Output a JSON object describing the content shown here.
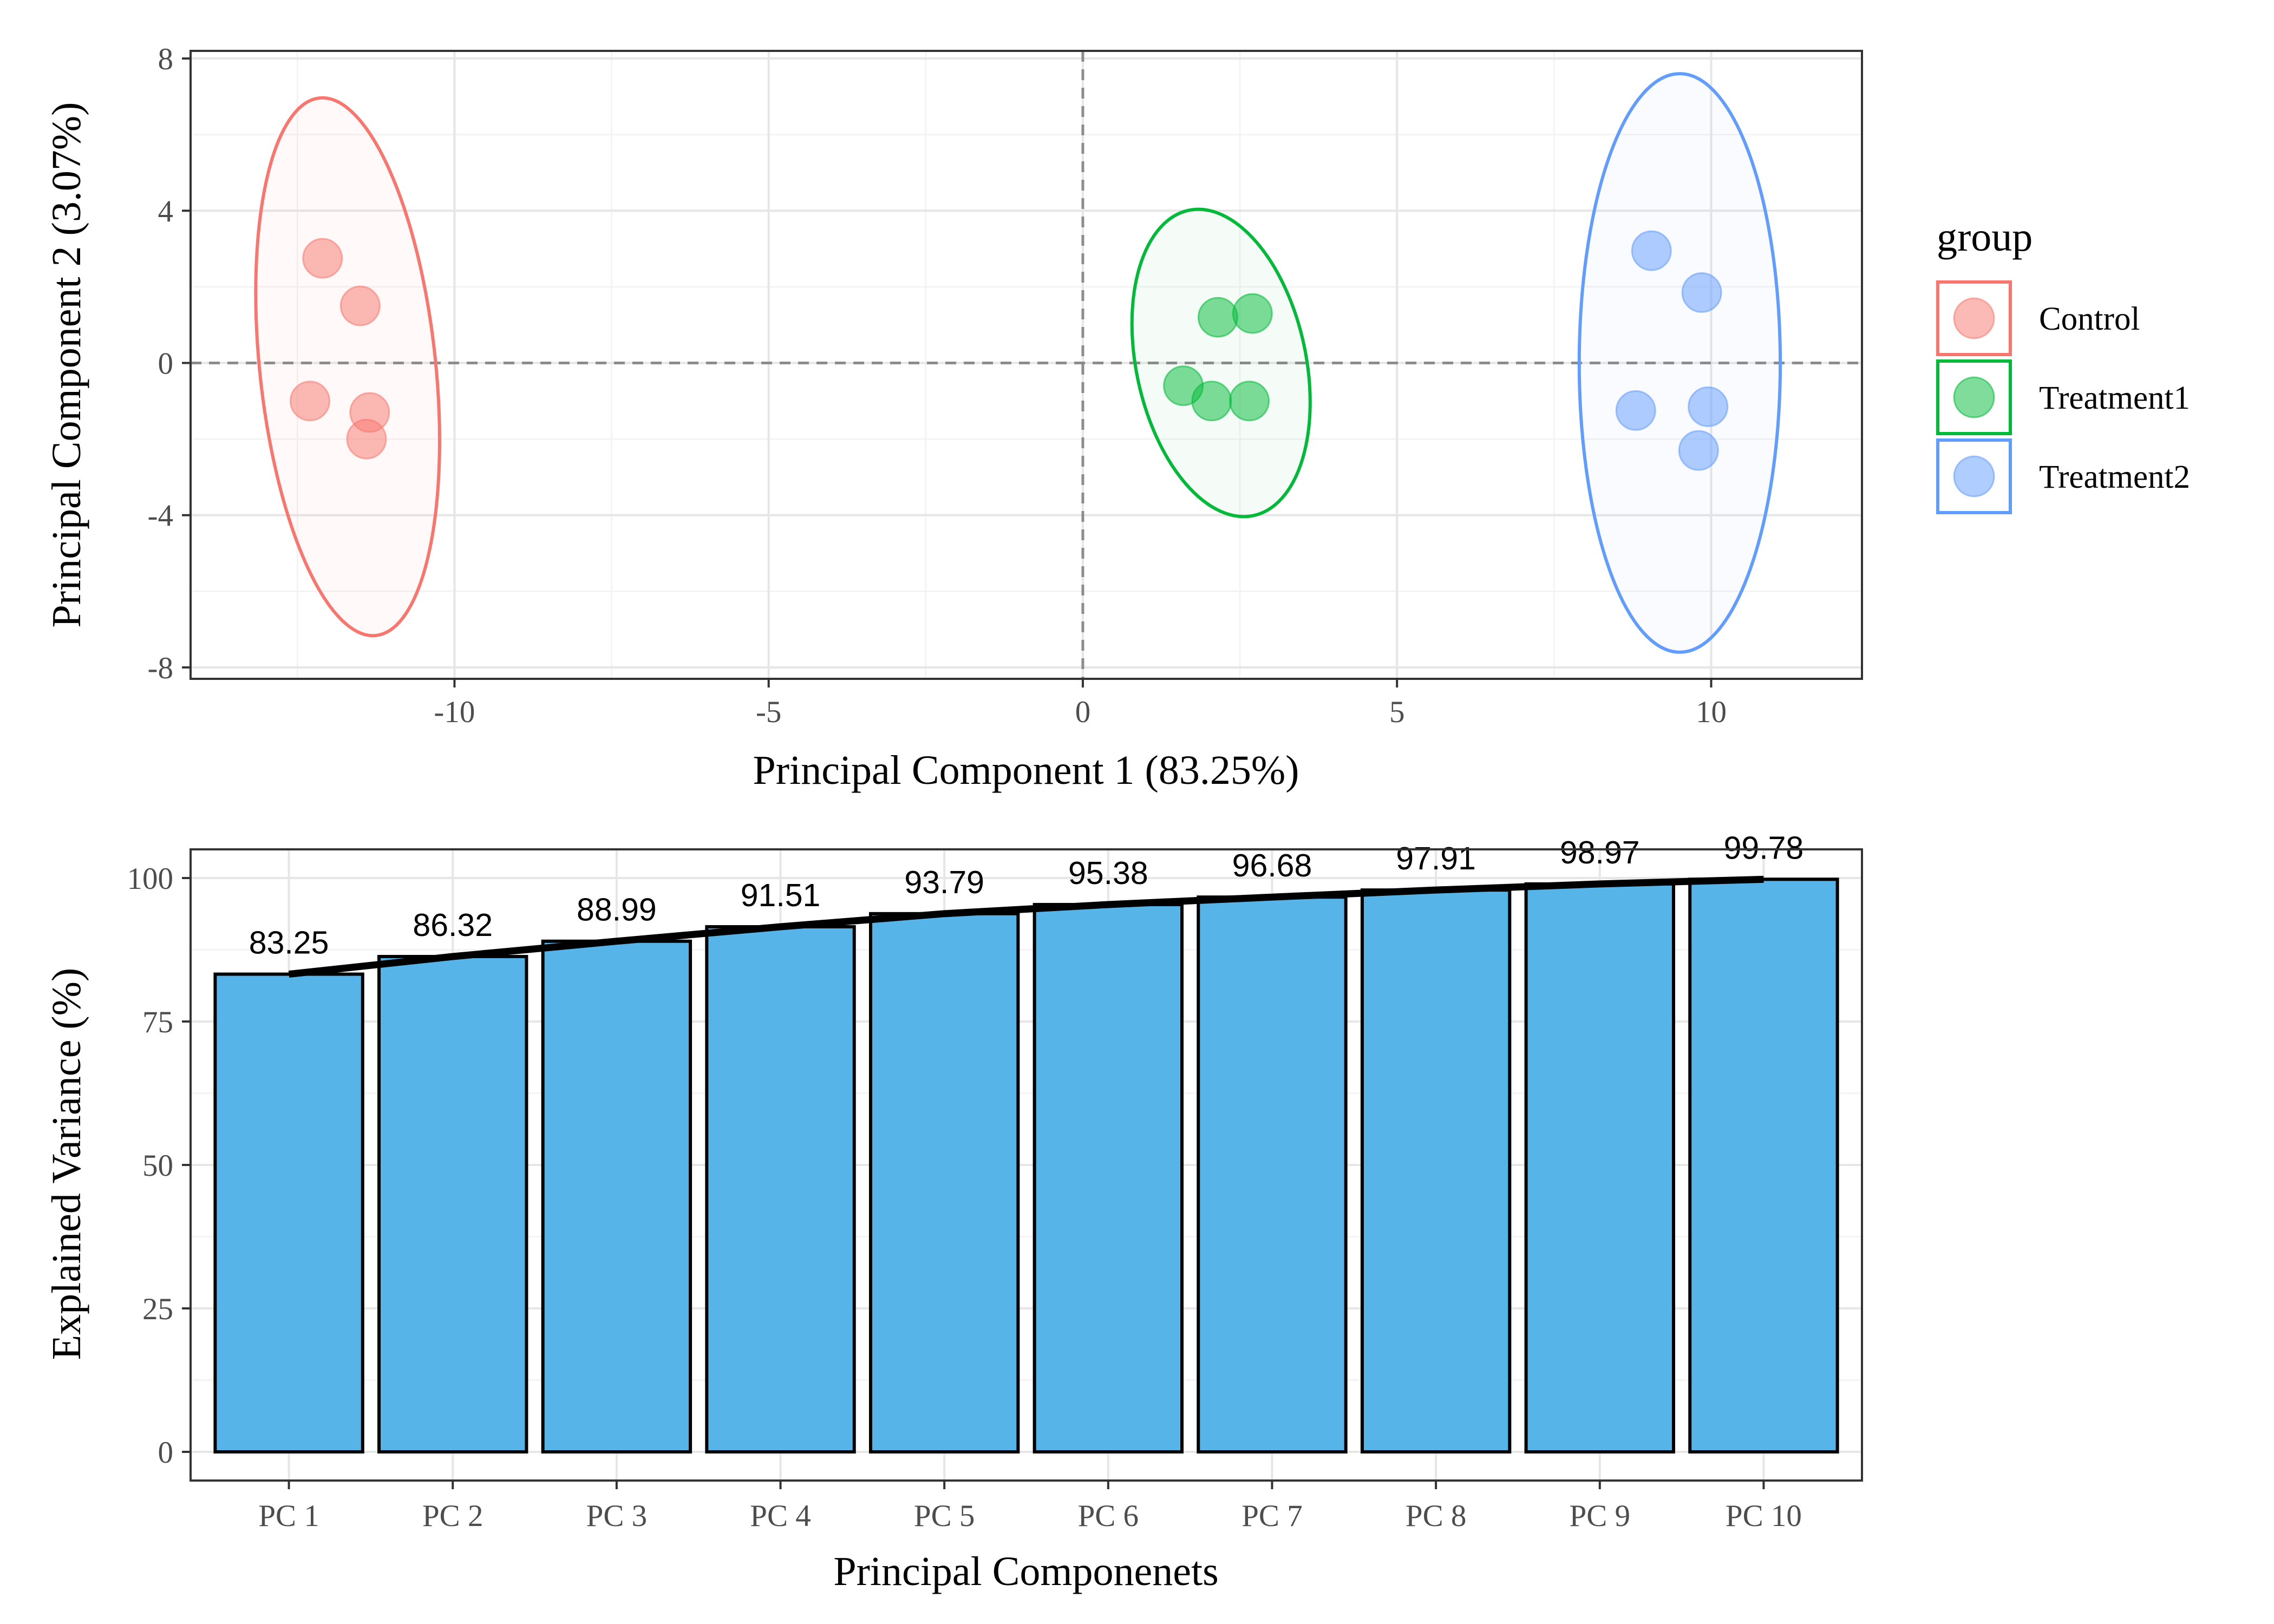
{
  "chart_data": [
    {
      "type": "scatter",
      "title": "",
      "xlabel": "Principal Component 1 (83.25%)",
      "ylabel": "Principal Component 2 (3.07%)",
      "xlim": [
        -14.2,
        12.4
      ],
      "ylim": [
        -8.3,
        8.2
      ],
      "xticks": [
        -10,
        -5,
        0,
        5,
        10
      ],
      "xtick_labels": [
        "-10",
        "-5",
        "0",
        "5",
        "10"
      ],
      "yticks": [
        -8,
        -4,
        0,
        4,
        8
      ],
      "ytick_labels": [
        "-8",
        "-4",
        "0",
        "4",
        "8"
      ],
      "grid": true,
      "reference_lines": {
        "x": 0,
        "y": 0,
        "style": "dashed"
      },
      "legend_title": "group",
      "legend_position": "right",
      "series": [
        {
          "name": "Control",
          "color": "#F8766D",
          "points": [
            [
              -12.1,
              2.75
            ],
            [
              -11.5,
              1.5
            ],
            [
              -12.3,
              -1.0
            ],
            [
              -11.35,
              -1.3
            ],
            [
              -11.4,
              -2.0
            ]
          ],
          "ellipse": {
            "cx": -11.7,
            "cy": -0.1,
            "rx": 1.4,
            "ry": 7.1,
            "angle_deg": -6
          }
        },
        {
          "name": "Treatment1",
          "color": "#00BA38",
          "points": [
            [
              2.15,
              1.2
            ],
            [
              2.7,
              1.3
            ],
            [
              1.6,
              -0.6
            ],
            [
              2.05,
              -1.0
            ],
            [
              2.65,
              -1.0
            ]
          ],
          "ellipse": {
            "cx": 2.2,
            "cy": 0.0,
            "rx": 1.35,
            "ry": 4.1,
            "angle_deg": -12
          }
        },
        {
          "name": "Treatment2",
          "color": "#619CFF",
          "points": [
            [
              9.05,
              2.95
            ],
            [
              9.85,
              1.85
            ],
            [
              8.8,
              -1.25
            ],
            [
              9.95,
              -1.15
            ],
            [
              9.8,
              -2.3
            ]
          ],
          "ellipse": {
            "cx": 9.5,
            "cy": 0.0,
            "rx": 1.6,
            "ry": 7.6,
            "angle_deg": 0
          }
        }
      ]
    },
    {
      "type": "bar",
      "title": "",
      "xlabel": "Principal Componenets",
      "ylabel": "Explained Variance (%)",
      "categories": [
        "PC 1",
        "PC 2",
        "PC 3",
        "PC 4",
        "PC 5",
        "PC 6",
        "PC 7",
        "PC 8",
        "PC 9",
        "PC 10"
      ],
      "values": [
        83.25,
        86.32,
        88.99,
        91.51,
        93.79,
        95.38,
        96.68,
        97.91,
        98.97,
        99.78
      ],
      "data_labels": [
        "83.25",
        "86.32",
        "88.99",
        "91.51",
        "93.79",
        "95.38",
        "96.68",
        "97.91",
        "98.97",
        "99.78"
      ],
      "line_overlay": true,
      "ylim": [
        -5,
        105
      ],
      "yticks": [
        0,
        25,
        50,
        75,
        100
      ],
      "ytick_labels": [
        "0",
        "25",
        "50",
        "75",
        "100"
      ],
      "bar_color": "#56B4E9",
      "grid": true
    }
  ]
}
